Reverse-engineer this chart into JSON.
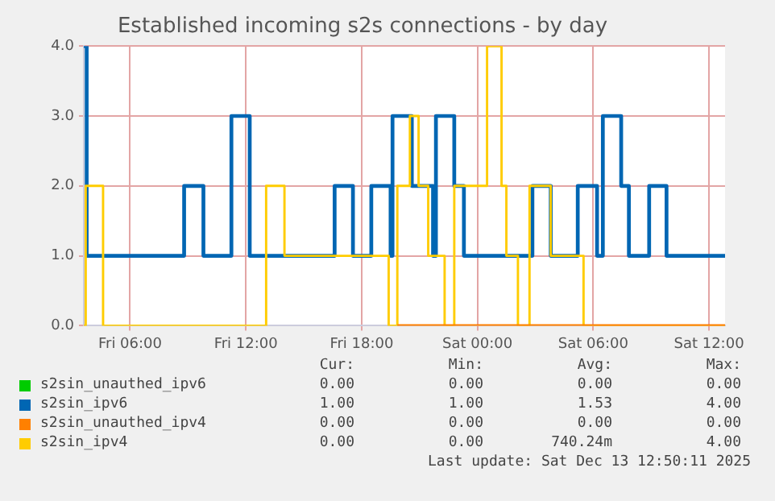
{
  "chart_data": {
    "type": "step",
    "title": "Established incoming s2s connections - by day",
    "xlim": [
      "2025-12-12T03:36",
      "2025-12-13T12:50"
    ],
    "xticks": [
      {
        "value": "2025-12-12T06:00",
        "label": "Fri 06:00"
      },
      {
        "value": "2025-12-12T12:00",
        "label": "Fri 12:00"
      },
      {
        "value": "2025-12-12T18:00",
        "label": "Fri 18:00"
      },
      {
        "value": "2025-12-13T00:00",
        "label": "Sat 00:00"
      },
      {
        "value": "2025-12-13T06:00",
        "label": "Sat 06:00"
      },
      {
        "value": "2025-12-13T12:00",
        "label": "Sat 12:00"
      }
    ],
    "ylim": [
      0,
      4
    ],
    "yticks": [
      {
        "value": 0,
        "label": "0.0"
      },
      {
        "value": 1,
        "label": "1.0"
      },
      {
        "value": 2,
        "label": "2.0"
      },
      {
        "value": 3,
        "label": "3.0"
      },
      {
        "value": 4,
        "label": "4.0"
      }
    ],
    "grid": true,
    "legend": "bottom",
    "marker": "none",
    "line_style": "solid",
    "series": [
      {
        "name": "s2sin_unauthed_ipv6",
        "color": "#00cc00"
      },
      {
        "name": "s2sin_ipv6",
        "color": "#0066b3",
        "x": [
          "2025-12-12T03:36",
          "2025-12-12T03:45",
          "2025-12-12T08:48",
          "2025-12-12T09:48",
          "2025-12-12T11:15",
          "2025-12-12T12:12",
          "2025-12-12T16:36",
          "2025-12-12T17:33",
          "2025-12-12T18:30",
          "2025-12-12T19:30",
          "2025-12-12T19:36",
          "2025-12-12T20:36",
          "2025-12-12T21:42",
          "2025-12-12T21:51",
          "2025-12-12T22:48",
          "2025-12-12T23:18",
          "2025-12-13T02:51",
          "2025-12-13T03:48",
          "2025-12-13T05:12",
          "2025-12-13T06:12",
          "2025-12-13T06:30",
          "2025-12-13T07:27",
          "2025-12-13T07:51",
          "2025-12-13T08:54",
          "2025-12-13T09:48",
          "2025-12-13T12:50"
        ],
        "values": [
          4,
          1,
          2,
          1,
          3,
          1,
          2,
          1,
          2,
          1,
          3,
          2,
          1,
          3,
          2,
          1,
          2,
          1,
          2,
          1,
          3,
          2,
          1,
          2,
          1,
          1
        ]
      },
      {
        "name": "s2sin_unauthed_ipv4",
        "color": "#ff8000",
        "x": [
          "2025-12-12T19:51",
          "2025-12-13T12:50"
        ],
        "values": [
          0,
          0
        ]
      },
      {
        "name": "s2sin_ipv4",
        "color": "#ffcc00",
        "x": [
          "2025-12-12T03:36",
          "2025-12-12T03:42",
          "2025-12-12T04:36",
          "2025-12-12T13:03",
          "2025-12-12T14:00",
          "2025-12-12T19:24",
          "2025-12-12T19:51",
          "2025-12-12T20:30",
          "2025-12-12T20:57",
          "2025-12-12T21:27",
          "2025-12-12T22:18",
          "2025-12-12T22:48",
          "2025-12-13T00:30",
          "2025-12-13T01:15",
          "2025-12-13T01:30",
          "2025-12-13T02:06",
          "2025-12-13T02:42",
          "2025-12-13T03:48",
          "2025-12-13T05:30",
          "2025-12-13T12:50"
        ],
        "values": [
          0,
          2,
          0,
          2,
          1,
          0,
          2,
          3,
          2,
          1,
          0,
          2,
          4,
          2,
          1,
          0,
          2,
          1,
          0,
          0
        ]
      }
    ],
    "annotations": [
      "Cur:",
      "Min:",
      "Avg:",
      "Max:",
      "0.00",
      "0.00",
      "0.00",
      "0.00",
      "1.00",
      "1.00",
      "1.53",
      "4.00",
      "0.00",
      "0.00",
      "0.00",
      "0.00",
      "0.00",
      "0.00",
      "740.24m",
      "4.00",
      "Last update: Sat Dec 13 12:50:11 2025"
    ]
  }
}
